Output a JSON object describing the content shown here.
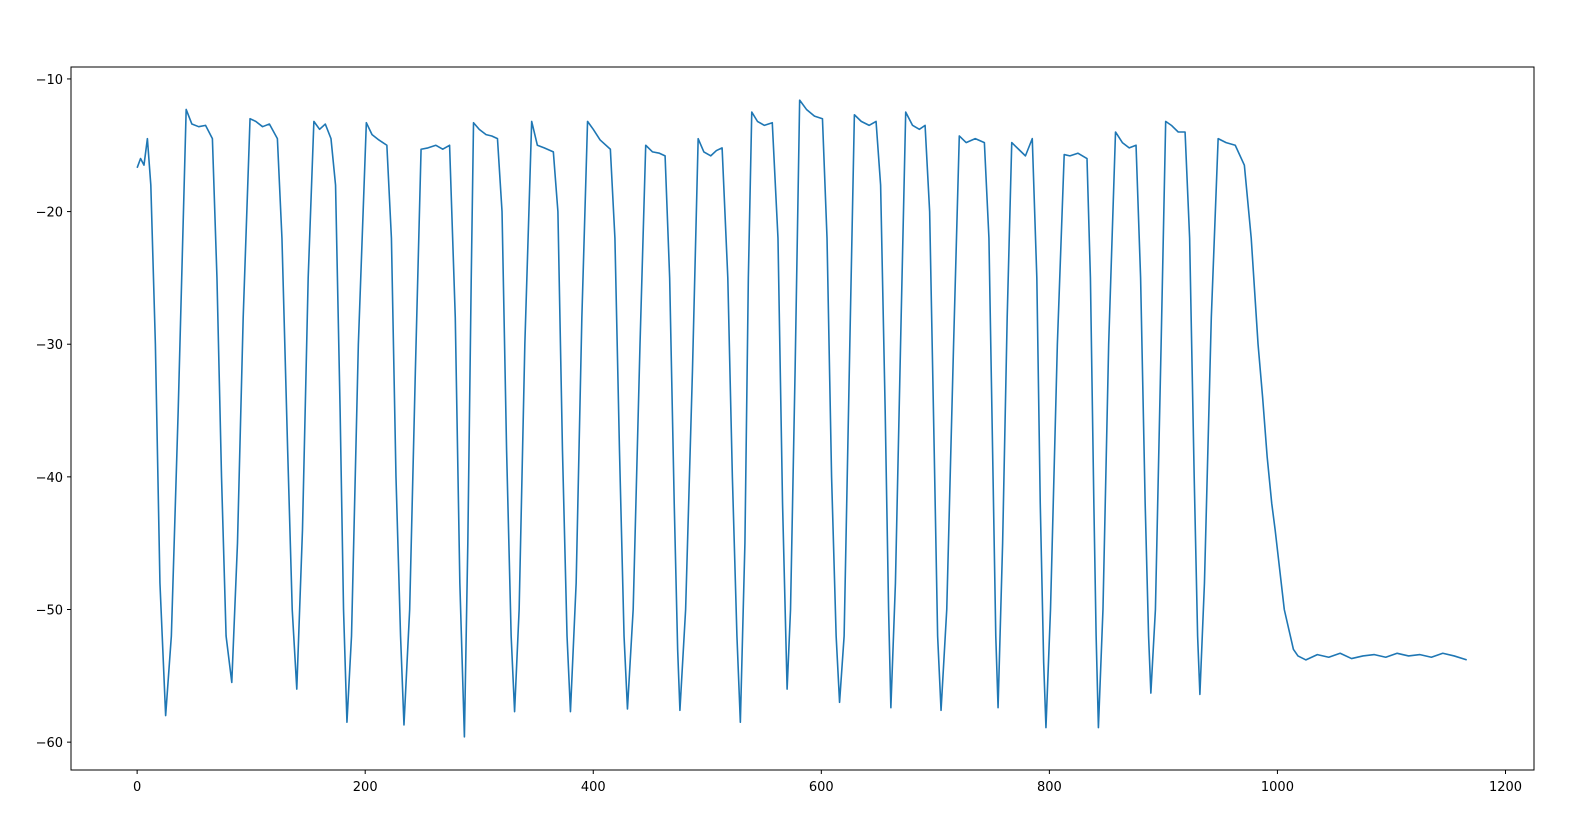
{
  "chart_data": {
    "type": "line",
    "x": [
      0,
      3,
      6,
      9,
      12,
      16,
      20,
      25,
      30,
      36,
      43,
      48,
      54,
      60,
      66,
      70,
      74,
      78,
      83,
      88,
      93,
      99,
      104,
      110,
      116,
      123,
      127,
      132,
      136,
      140,
      145,
      150,
      155,
      160,
      165,
      170,
      174,
      178,
      181,
      184,
      188,
      194,
      201,
      206,
      212,
      219,
      223,
      227,
      231,
      234,
      239,
      244,
      249,
      255,
      262,
      268,
      274,
      279,
      283,
      287,
      290,
      293,
      295,
      300,
      306,
      311,
      316,
      320,
      324,
      328,
      331,
      335,
      340,
      346,
      351,
      357,
      365,
      369,
      373,
      377,
      380,
      385,
      390,
      395,
      400,
      406,
      415,
      419,
      423,
      427,
      430,
      435,
      441,
      446,
      452,
      458,
      463,
      467,
      471,
      474,
      476,
      481,
      487,
      492,
      497,
      503,
      508,
      513,
      518,
      522,
      526,
      529,
      533,
      536,
      539,
      544,
      550,
      557,
      562,
      566,
      570,
      573,
      577,
      581,
      587,
      594,
      601,
      605,
      609,
      613,
      616,
      620,
      625,
      629,
      635,
      642,
      648,
      652,
      656,
      659,
      661,
      665,
      670,
      674,
      680,
      686,
      691,
      695,
      699,
      702,
      705,
      710,
      716,
      721,
      727,
      735,
      743,
      747,
      751,
      753,
      755,
      759,
      763,
      767,
      773,
      779,
      785,
      789,
      792,
      795,
      797,
      801,
      807,
      813,
      818,
      825,
      833,
      836,
      839,
      841,
      843,
      847,
      852,
      858,
      864,
      870,
      876,
      880,
      884,
      887,
      889,
      893,
      898,
      902,
      907,
      913,
      919,
      923,
      927,
      930,
      932,
      936,
      942,
      948,
      955,
      963,
      971,
      977,
      983,
      987,
      991,
      995,
      998,
      1002,
      1006,
      1010,
      1014,
      1018,
      1025,
      1035,
      1045,
      1055,
      1065,
      1075,
      1085,
      1095,
      1105,
      1115,
      1125,
      1135,
      1145,
      1155,
      1166
    ],
    "series": [
      {
        "color": "#1f77b4",
        "values": [
          -16.7,
          -16,
          -16.5,
          -14.5,
          -18,
          -30,
          -48,
          -58,
          -52,
          -35,
          -12.3,
          -13.4,
          -13.6,
          -13.5,
          -14.5,
          -25,
          -40,
          -52,
          -55.5,
          -45,
          -28,
          -13,
          -13.2,
          -13.6,
          -13.4,
          -14.5,
          -22,
          -38,
          -50,
          -56,
          -44,
          -25,
          -13.2,
          -13.8,
          -13.4,
          -14.5,
          -18,
          -35,
          -50,
          -58.5,
          -52,
          -30,
          -13.3,
          -14.2,
          -14.6,
          -15,
          -22,
          -40,
          -52,
          -58.7,
          -50,
          -32,
          -15.3,
          -15.2,
          -15,
          -15.3,
          -15,
          -28,
          -48,
          -59.6,
          -45,
          -25,
          -13.3,
          -13.8,
          -14.2,
          -14.3,
          -14.5,
          -20,
          -38,
          -52,
          -57.7,
          -50,
          -30,
          -13.2,
          -15,
          -15.2,
          -15.5,
          -20,
          -38,
          -52,
          -57.7,
          -48,
          -28,
          -13.2,
          -13.8,
          -14.6,
          -15.3,
          -22,
          -38,
          -52,
          -57.5,
          -50,
          -30,
          -15,
          -15.5,
          -15.6,
          -15.8,
          -25,
          -42,
          -53,
          -57.6,
          -50,
          -32,
          -14.5,
          -15.5,
          -15.8,
          -15.4,
          -15.2,
          -25,
          -40,
          -52,
          -58.5,
          -45,
          -25,
          -12.5,
          -13.2,
          -13.5,
          -13.3,
          -22,
          -42,
          -56,
          -50,
          -32,
          -11.6,
          -12.3,
          -12.8,
          -13,
          -22,
          -40,
          -52,
          -57,
          -52,
          -30,
          -12.7,
          -13.2,
          -13.5,
          -13.2,
          -18,
          -35,
          -50,
          -57.4,
          -48,
          -28,
          -12.5,
          -13.5,
          -13.8,
          -13.5,
          -20,
          -38,
          -52,
          -57.6,
          -50,
          -30,
          -14.3,
          -14.8,
          -14.5,
          -14.8,
          -22,
          -42,
          -52,
          -57.4,
          -45,
          -28,
          -14.8,
          -15.3,
          -15.8,
          -14.5,
          -25,
          -42,
          -54,
          -58.9,
          -50,
          -30,
          -15.7,
          -15.8,
          -15.6,
          -16,
          -25,
          -42,
          -52,
          -58.9,
          -50,
          -30,
          -14,
          -14.8,
          -15.2,
          -15,
          -25,
          -42,
          -52,
          -56.3,
          -50,
          -30,
          -13.2,
          -13.5,
          -14,
          -14,
          -22,
          -40,
          -52,
          -56.4,
          -48,
          -28,
          -14.5,
          -14.8,
          -15,
          -16.5,
          -22,
          -30,
          -34,
          -38.5,
          -42,
          -44,
          -47,
          -50,
          -51.5,
          -53,
          -53.5,
          -53.8,
          -53.4,
          -53.6,
          -53.3,
          -53.7,
          -53.5,
          -53.4,
          -53.6,
          -53.3,
          -53.5,
          -53.4,
          -53.6,
          -53.3,
          -53.5,
          -53.8
        ]
      }
    ],
    "xlim": [
      -58,
      1225
    ],
    "ylim": [
      -62.1,
      -9.1
    ],
    "xticks": [
      0,
      200,
      400,
      600,
      800,
      1000,
      1200
    ],
    "yticks": [
      {
        "value": -60,
        "label": "−60"
      },
      {
        "value": -50,
        "label": "−50"
      },
      {
        "value": -40,
        "label": "−40"
      },
      {
        "value": -30,
        "label": "−30"
      },
      {
        "value": -20,
        "label": "−20"
      },
      {
        "value": -10,
        "label": "−10"
      }
    ]
  }
}
